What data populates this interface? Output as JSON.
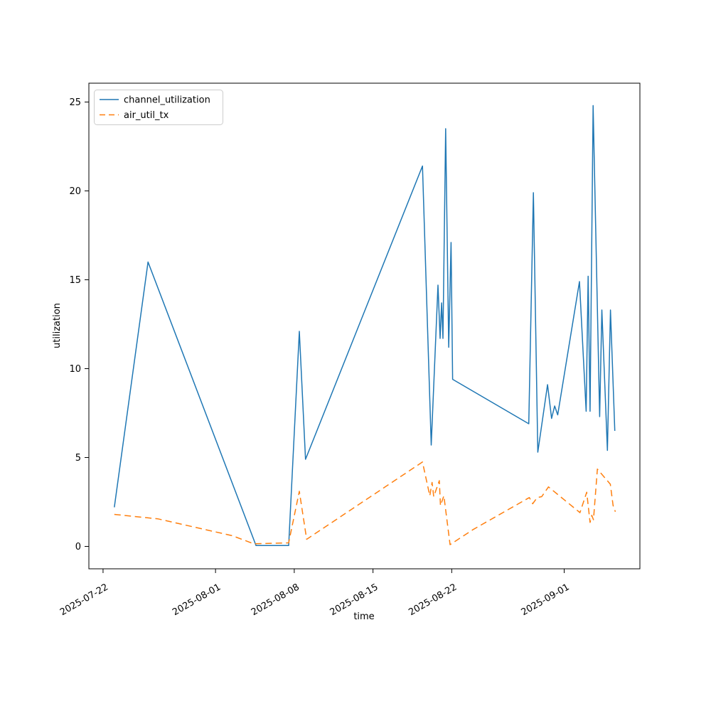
{
  "chart_data": {
    "type": "line",
    "title": "",
    "xlabel": "time",
    "ylabel": "utilization",
    "x_unit": "days_since_2025-07-22",
    "xlim": [
      -1.26,
      47.73
    ],
    "ylim": [
      -1.26,
      26.06
    ],
    "grid": false,
    "legend_position": "upper-left",
    "x_ticks": [
      {
        "day": 0,
        "label": "2025-07-22"
      },
      {
        "day": 10,
        "label": "2025-08-01"
      },
      {
        "day": 17,
        "label": "2025-08-08"
      },
      {
        "day": 24,
        "label": "2025-08-15"
      },
      {
        "day": 31,
        "label": "2025-08-22"
      },
      {
        "day": 41,
        "label": "2025-09-01"
      }
    ],
    "y_ticks": [
      0,
      5,
      10,
      15,
      20,
      25
    ],
    "series": [
      {
        "name": "channel_utilization",
        "color": "#1f77b4",
        "line_style": "solid",
        "points": [
          [
            1.0,
            2.2
          ],
          [
            4.0,
            16.0
          ],
          [
            13.6,
            0.05
          ],
          [
            16.5,
            0.05
          ],
          [
            17.45,
            12.1
          ],
          [
            18.0,
            4.9
          ],
          [
            28.4,
            21.4
          ],
          [
            29.18,
            5.7
          ],
          [
            29.78,
            14.7
          ],
          [
            29.97,
            11.7
          ],
          [
            30.1,
            13.7
          ],
          [
            30.22,
            11.7
          ],
          [
            30.46,
            23.5
          ],
          [
            30.73,
            11.2
          ],
          [
            30.94,
            17.1
          ],
          [
            31.08,
            9.4
          ],
          [
            37.85,
            6.9
          ],
          [
            38.26,
            19.9
          ],
          [
            38.65,
            5.3
          ],
          [
            39.52,
            9.1
          ],
          [
            39.88,
            7.2
          ],
          [
            40.15,
            7.9
          ],
          [
            40.42,
            7.4
          ],
          [
            42.36,
            14.9
          ],
          [
            42.95,
            7.6
          ],
          [
            43.13,
            15.2
          ],
          [
            43.3,
            7.6
          ],
          [
            43.57,
            24.8
          ],
          [
            44.15,
            7.3
          ],
          [
            44.35,
            13.3
          ],
          [
            44.84,
            5.4
          ],
          [
            45.11,
            13.3
          ],
          [
            45.5,
            6.5
          ]
        ]
      },
      {
        "name": "air_util_tx",
        "color": "#ff7f0e",
        "line_style": "dashed",
        "points": [
          [
            1.0,
            1.8
          ],
          [
            4.9,
            1.55
          ],
          [
            11.5,
            0.6
          ],
          [
            13.4,
            0.15
          ],
          [
            16.5,
            0.2
          ],
          [
            17.45,
            3.1
          ],
          [
            18.1,
            0.4
          ],
          [
            28.4,
            4.75
          ],
          [
            29.05,
            2.85
          ],
          [
            29.25,
            3.6
          ],
          [
            29.4,
            2.8
          ],
          [
            29.9,
            3.7
          ],
          [
            30.0,
            2.3
          ],
          [
            30.3,
            2.85
          ],
          [
            30.85,
            0.1
          ],
          [
            32.9,
            0.95
          ],
          [
            37.9,
            2.75
          ],
          [
            38.2,
            2.4
          ],
          [
            38.6,
            2.75
          ],
          [
            39.0,
            2.8
          ],
          [
            39.6,
            3.35
          ],
          [
            42.4,
            1.9
          ],
          [
            43.0,
            3.05
          ],
          [
            43.3,
            1.35
          ],
          [
            43.45,
            1.75
          ],
          [
            43.6,
            1.5
          ],
          [
            43.95,
            4.35
          ],
          [
            45.1,
            3.5
          ],
          [
            45.35,
            2.3
          ],
          [
            45.55,
            1.95
          ]
        ]
      }
    ]
  },
  "legend": {
    "items": [
      {
        "label": "channel_utilization"
      },
      {
        "label": "air_util_tx"
      }
    ]
  }
}
